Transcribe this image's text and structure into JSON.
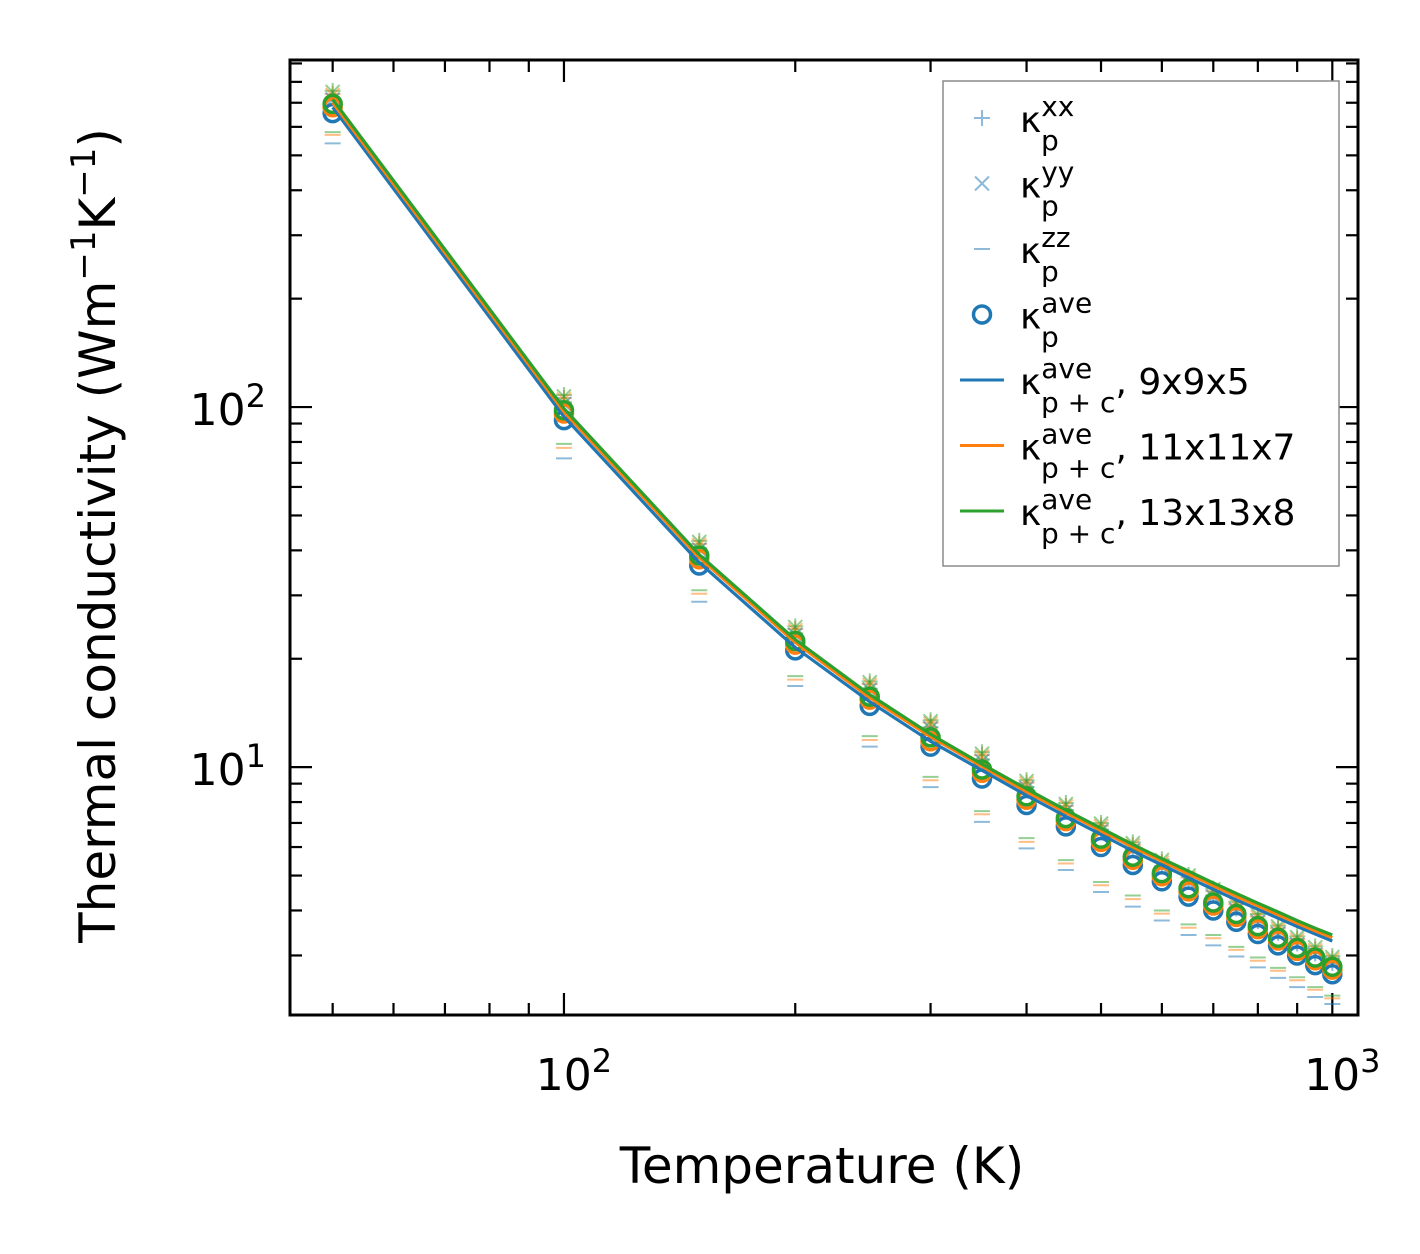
{
  "chart_data": {
    "type": "line",
    "x_scale": "log",
    "y_scale": "log",
    "xlabel": "Temperature (K)",
    "ylabel": {
      "main": "Thermal conductivity (Wm",
      "exp1": "−1",
      "mid": "K",
      "exp2": "−1",
      "close": ")"
    },
    "xlim": [
      44,
      1080
    ],
    "ylim": [
      2.05,
      920
    ],
    "x_ticks": [
      {
        "value": 100,
        "base": "10",
        "exp": "2"
      },
      {
        "value": 1000,
        "base": "10",
        "exp": "3"
      }
    ],
    "y_ticks": [
      {
        "value": 10,
        "base": "10",
        "exp": "1"
      },
      {
        "value": 100,
        "base": "10",
        "exp": "2"
      }
    ],
    "x": [
      50,
      100,
      150,
      200,
      250,
      300,
      350,
      400,
      450,
      500,
      550,
      600,
      650,
      700,
      750,
      800,
      850,
      900,
      950,
      1000
    ],
    "markers": [
      {
        "name": "κp_xx",
        "marker": "plus",
        "series": [
          {
            "grid": "9x9x5",
            "color": "#1f77b4",
            "values": [
              720,
              103,
              40.5,
              23.5,
              16.5,
              12.9,
              10.5,
              8.8,
              7.6,
              6.7,
              5.9,
              5.3,
              4.8,
              4.4,
              4.05,
              3.74,
              3.47,
              3.24,
              3.04,
              2.86
            ]
          },
          {
            "grid": "11x11x7",
            "color": "#ff7f0e",
            "values": [
              740,
              106,
              41.7,
              24.2,
              17.0,
              13.3,
              10.8,
              9.05,
              7.8,
              6.88,
              6.08,
              5.45,
              4.94,
              4.52,
              4.16,
              3.85,
              3.57,
              3.33,
              3.12,
              2.94
            ]
          },
          {
            "grid": "13x13x8",
            "color": "#2ca02c",
            "values": [
              755,
              108,
              42.5,
              24.6,
              17.3,
              13.5,
              11.0,
              9.2,
              7.95,
              7.0,
              6.18,
              5.55,
              5.02,
              4.6,
              4.23,
              3.91,
              3.63,
              3.39,
              3.18,
              2.99
            ]
          }
        ]
      },
      {
        "name": "κp_yy",
        "marker": "x",
        "series": [
          {
            "grid": "9x9x5",
            "color": "#1f77b4",
            "values": [
              715,
              102,
              40.2,
              23.3,
              16.4,
              12.8,
              10.4,
              8.75,
              7.55,
              6.65,
              5.88,
              5.28,
              4.78,
              4.37,
              4.02,
              3.72,
              3.45,
              3.22,
              3.02,
              2.84
            ]
          },
          {
            "grid": "11x11x7",
            "color": "#ff7f0e",
            "values": [
              735,
              105,
              41.4,
              24.0,
              16.9,
              13.2,
              10.7,
              9.0,
              7.78,
              6.85,
              6.05,
              5.43,
              4.92,
              4.5,
              4.14,
              3.83,
              3.55,
              3.31,
              3.1,
              2.92
            ]
          },
          {
            "grid": "13x13x8",
            "color": "#2ca02c",
            "values": [
              750,
              107,
              42.2,
              24.5,
              17.2,
              13.4,
              10.9,
              9.15,
              7.9,
              6.97,
              6.15,
              5.52,
              5.0,
              4.58,
              4.21,
              3.89,
              3.61,
              3.37,
              3.16,
              2.97
            ]
          }
        ]
      },
      {
        "name": "κp_zz",
        "marker": "hline",
        "series": [
          {
            "grid": "9x9x5",
            "color": "#1f77b4",
            "values": [
              540,
              72,
              28.8,
              16.8,
              11.4,
              8.8,
              7.05,
              5.95,
              5.18,
              4.5,
              4.1,
              3.75,
              3.42,
              3.2,
              2.98,
              2.78,
              2.6,
              2.45,
              2.3,
              2.2
            ]
          },
          {
            "grid": "11x11x7",
            "color": "#ff7f0e",
            "values": [
              570,
              77,
              30.3,
              17.5,
              11.9,
              9.2,
              7.4,
              6.2,
              5.4,
              4.7,
              4.3,
              3.92,
              3.58,
              3.35,
              3.11,
              2.9,
              2.72,
              2.56,
              2.41,
              2.28
            ]
          },
          {
            "grid": "13x13x8",
            "color": "#2ca02c",
            "values": [
              580,
              79,
              31.0,
              17.9,
              12.2,
              9.4,
              7.55,
              6.35,
              5.52,
              4.8,
              4.4,
              4.0,
              3.66,
              3.42,
              3.17,
              2.96,
              2.77,
              2.61,
              2.45,
              2.32
            ]
          }
        ]
      },
      {
        "name": "κp_ave",
        "marker": "circle",
        "series": [
          {
            "grid": "9x9x5",
            "color": "#1f77b4",
            "values": [
              655,
              92,
              36.3,
              21.1,
              14.8,
              11.4,
              9.3,
              7.85,
              6.85,
              6.0,
              5.35,
              4.82,
              4.37,
              4.0,
              3.72,
              3.44,
              3.2,
              3.0,
              2.82,
              2.66
            ]
          },
          {
            "grid": "11x11x7",
            "color": "#ff7f0e",
            "values": [
              680,
              96,
              37.8,
              21.9,
              15.4,
              11.8,
              9.65,
              8.12,
              7.08,
              6.2,
              5.53,
              4.98,
              4.52,
              4.13,
              3.84,
              3.55,
              3.3,
              3.09,
              2.91,
              2.74
            ]
          },
          {
            "grid": "13x13x8",
            "color": "#2ca02c",
            "values": [
              695,
              98,
              38.7,
              22.4,
              15.7,
              12.1,
              9.85,
              8.3,
              7.22,
              6.33,
              5.64,
              5.08,
              4.61,
              4.21,
              3.91,
              3.62,
              3.36,
              3.15,
              2.96,
              2.79
            ]
          }
        ]
      }
    ],
    "lines": [
      {
        "name": "κp+c_ave, 9x9x5",
        "color": "#1f77b4",
        "values": [
          680,
          94,
          37.0,
          21.5,
          15.2,
          11.8,
          9.8,
          8.35,
          7.3,
          6.5,
          5.85,
          5.35,
          4.93,
          4.58,
          4.28,
          4.03,
          3.81,
          3.61,
          3.44,
          3.29
        ]
      },
      {
        "name": "κp+c_ave, 11x11x7",
        "color": "#ff7f0e",
        "values": [
          700,
          97,
          38.2,
          22.2,
          15.6,
          12.15,
          10.05,
          8.55,
          7.48,
          6.66,
          6.0,
          5.48,
          5.05,
          4.69,
          4.38,
          4.12,
          3.89,
          3.69,
          3.51,
          3.36
        ]
      },
      {
        "name": "κp+c_ave, 13x13x8",
        "color": "#2ca02c",
        "values": [
          715,
          99,
          38.9,
          22.6,
          15.9,
          12.35,
          10.2,
          8.7,
          7.6,
          6.77,
          6.1,
          5.57,
          5.14,
          4.77,
          4.46,
          4.19,
          3.96,
          3.75,
          3.57,
          3.42
        ]
      }
    ],
    "legend": {
      "location": "top-right",
      "entries": [
        {
          "marker": "plus",
          "color": "#1f77b4",
          "kappa": "κ",
          "sub": "p",
          "sup": "xx",
          "suffix": ""
        },
        {
          "marker": "x",
          "color": "#1f77b4",
          "kappa": "κ",
          "sub": "p",
          "sup": "yy",
          "suffix": ""
        },
        {
          "marker": "hline",
          "color": "#1f77b4",
          "kappa": "κ",
          "sub": "p",
          "sup": "zz",
          "suffix": ""
        },
        {
          "marker": "circle",
          "color": "#1f77b4",
          "kappa": "κ",
          "sub": "p",
          "sup": "ave",
          "suffix": ""
        },
        {
          "marker": "line",
          "color": "#1f77b4",
          "kappa": "κ",
          "sub": "p + c",
          "sup": "ave",
          "suffix": ", 9x9x5"
        },
        {
          "marker": "line",
          "color": "#ff7f0e",
          "kappa": "κ",
          "sub": "p + c",
          "sup": "ave",
          "suffix": ", 11x11x7"
        },
        {
          "marker": "line",
          "color": "#2ca02c",
          "kappa": "κ",
          "sub": "p + c",
          "sup": "ave",
          "suffix": ", 13x13x8"
        }
      ]
    }
  }
}
